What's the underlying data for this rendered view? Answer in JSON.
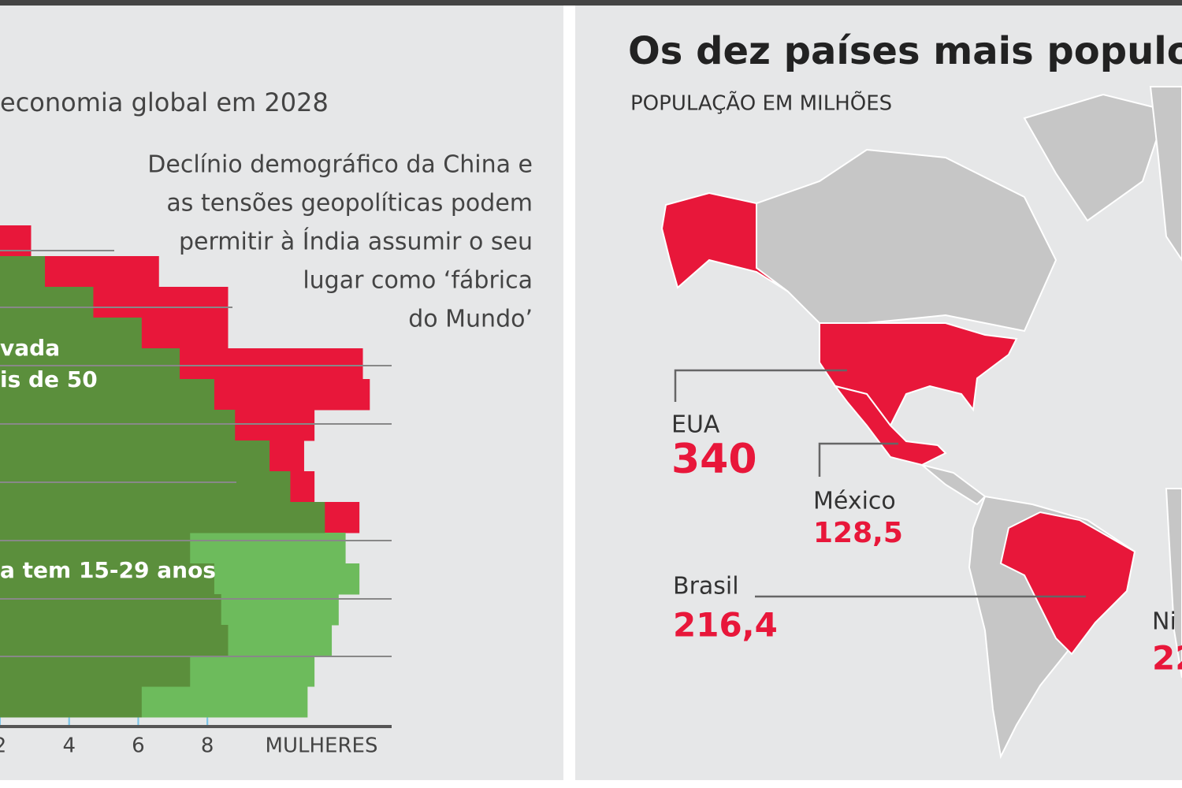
{
  "chart_data": {
    "type": "pyramid",
    "subtitle": "economia global em 2028",
    "annotation": [
      "Declínio demográfico da China e",
      "as tensões geopolíticas  podem",
      "permitir à Índia assumir o seu",
      "lugar como ‘fábrica",
      "do Mundo’"
    ],
    "labels": [
      "vada",
      "is de 50",
      "a tem 15-29 anos"
    ],
    "xlabel": "MULHERES",
    "categories": [
      null,
      null,
      null,
      null,
      null,
      null,
      null,
      null,
      null,
      null,
      null,
      null,
      null,
      null,
      null,
      null
    ],
    "series": [
      {
        "color": "#e8173a",
        "values": [
          2.9,
          6.6,
          8.6,
          8.6,
          12.5,
          12.7,
          11.1,
          10.8,
          11.1,
          12.4,
          0,
          0,
          0,
          0,
          0,
          0
        ]
      },
      {
        "color": "#6dbb5c",
        "values": [
          0,
          0,
          0,
          0,
          0,
          0,
          0,
          0,
          0,
          0,
          12.0,
          12.4,
          11.8,
          11.6,
          11.1,
          10.9
        ]
      },
      {
        "color": "#5b8f3c",
        "values": [
          0,
          3.3,
          4.7,
          6.1,
          7.2,
          8.2,
          8.8,
          9.8,
          10.4,
          11.4,
          7.5,
          8.2,
          8.4,
          8.6,
          7.5,
          6.1
        ]
      }
    ],
    "xlim": [
      2,
      13.4
    ],
    "xticks": [
      2,
      4,
      6,
      8
    ],
    "grid": true
  },
  "map": {
    "title": "Os dez países mais populo",
    "subtitle": "POPULAÇÃO EM MILHÕES",
    "countries": [
      {
        "name": "EUA",
        "value": "340"
      },
      {
        "name": "México",
        "value": "128,5"
      },
      {
        "name": "Brasil",
        "value": "216,4"
      },
      {
        "name": "Ni",
        "value": "22"
      }
    ]
  }
}
